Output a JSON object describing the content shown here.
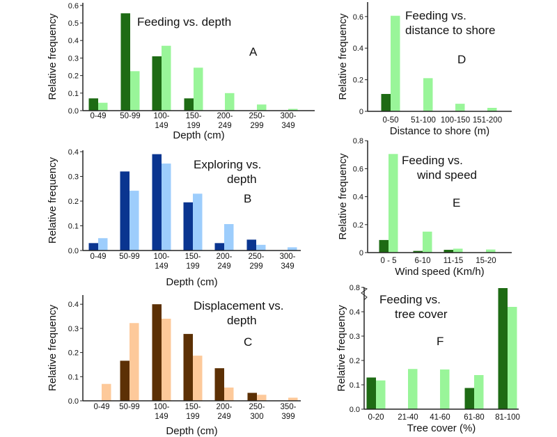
{
  "chart_data": [
    {
      "panel": "A",
      "type": "bar",
      "title": [
        "Feeding vs. depth"
      ],
      "xlabel": "Depth (cm)",
      "ylabel": "Relative frequency",
      "ylim": [
        0,
        0.6
      ],
      "yticks": [
        "0.0",
        "0.1",
        "0.2",
        "0.3",
        "0.4",
        "0.5",
        "0.6"
      ],
      "categories": [
        "0-49",
        "50-99",
        "100-149",
        "150-199",
        "200-249",
        "250-299",
        "300-349"
      ],
      "series": [
        {
          "values": [
            0.07,
            0.555,
            0.31,
            0.07,
            0,
            0,
            0
          ],
          "color": "#1e6b14"
        },
        {
          "values": [
            0.045,
            0.225,
            0.37,
            0.245,
            0.1,
            0.035,
            0.01
          ],
          "color": "#99f599"
        }
      ]
    },
    {
      "panel": "B",
      "type": "bar",
      "title": [
        "Exploring vs.",
        "depth"
      ],
      "xlabel": "Depth (cm)",
      "ylabel": "Relative frequency",
      "ylim": [
        0,
        0.4
      ],
      "yticks": [
        "0.0",
        "0.1",
        "0.2",
        "0.3",
        "0.4"
      ],
      "categories": [
        "0-49",
        "50-99",
        "100-149",
        "150-199",
        "200-249",
        "250-299",
        "300-349"
      ],
      "series": [
        {
          "values": [
            0.03,
            0.32,
            0.39,
            0.195,
            0.03,
            0.044,
            0
          ],
          "color": "#0a3590"
        },
        {
          "values": [
            0.05,
            0.242,
            0.352,
            0.23,
            0.107,
            0.023,
            0.013
          ],
          "color": "#9dcdfc"
        }
      ]
    },
    {
      "panel": "C",
      "type": "bar",
      "title": [
        "Displacement vs.",
        "depth"
      ],
      "xlabel": "Depth (cm)",
      "ylabel": "Relative frequency",
      "ylim": [
        0,
        0.4
      ],
      "yticks": [
        "0.0",
        "0.1",
        "0.2",
        "0.3",
        "0.4"
      ],
      "categories": [
        "0-49",
        "50-99",
        "100-149",
        "150-199",
        "200-249",
        "250-300",
        "350-399"
      ],
      "series": [
        {
          "values": [
            0,
            0.166,
            0.4,
            0.277,
            0.135,
            0.033,
            0
          ],
          "color": "#5c3005"
        },
        {
          "values": [
            0.07,
            0.322,
            0.34,
            0.187,
            0.055,
            0.025,
            0.013
          ],
          "color": "#fdc99a"
        }
      ]
    },
    {
      "panel": "D",
      "type": "bar",
      "title": [
        "Feeding vs.",
        "distance to shore"
      ],
      "xlabel": "Distance to shore (m)",
      "ylabel": "Relative frequency",
      "ylim": [
        0,
        0.6
      ],
      "yticks": [
        "0",
        "0.2",
        "0.4",
        "0.6"
      ],
      "categories": [
        "0-50",
        "51-100",
        "100-150",
        "151-200"
      ],
      "series": [
        {
          "values": [
            0.11,
            0,
            0,
            0
          ],
          "color": "#1e6b14"
        },
        {
          "values": [
            0.605,
            0.21,
            0.048,
            0.022
          ],
          "color": "#99f599"
        }
      ]
    },
    {
      "panel": "E",
      "type": "bar",
      "title": [
        "Feeding vs.",
        "wind speed"
      ],
      "xlabel": "Wind speed (Km/h)",
      "ylabel": "Relative frequency",
      "ylim": [
        0,
        0.8
      ],
      "yticks": [
        "0",
        "0.2",
        "0.4",
        "0.6",
        "0.8"
      ],
      "categories": [
        "0 - 5",
        "6-10",
        "11-15",
        "15-20"
      ],
      "series": [
        {
          "values": [
            0.09,
            0.012,
            0.02,
            0
          ],
          "color": "#1e6b14"
        },
        {
          "values": [
            0.705,
            0.15,
            0.028,
            0.022
          ],
          "color": "#99f599"
        }
      ]
    },
    {
      "panel": "F",
      "type": "bar",
      "title": [
        "Feeding vs.",
        "tree cover"
      ],
      "xlabel": "Tree cover (%)",
      "ylabel": "Relative frequency",
      "ylim": [
        0,
        0.8
      ],
      "axis_break": [
        0.45,
        0.75
      ],
      "yticks": [
        "0.0",
        "0.1",
        "0.2",
        "0.3",
        "0.4",
        "0.8"
      ],
      "categories": [
        "0-20",
        "21-40",
        "41-60",
        "61-80",
        "81-100"
      ],
      "series": [
        {
          "values": [
            0.13,
            0,
            0,
            0.087,
            0.78
          ],
          "color": "#1e6b14"
        },
        {
          "values": [
            0.118,
            0.165,
            0.163,
            0.14,
            0.42
          ],
          "color": "#99f599"
        }
      ]
    }
  ]
}
